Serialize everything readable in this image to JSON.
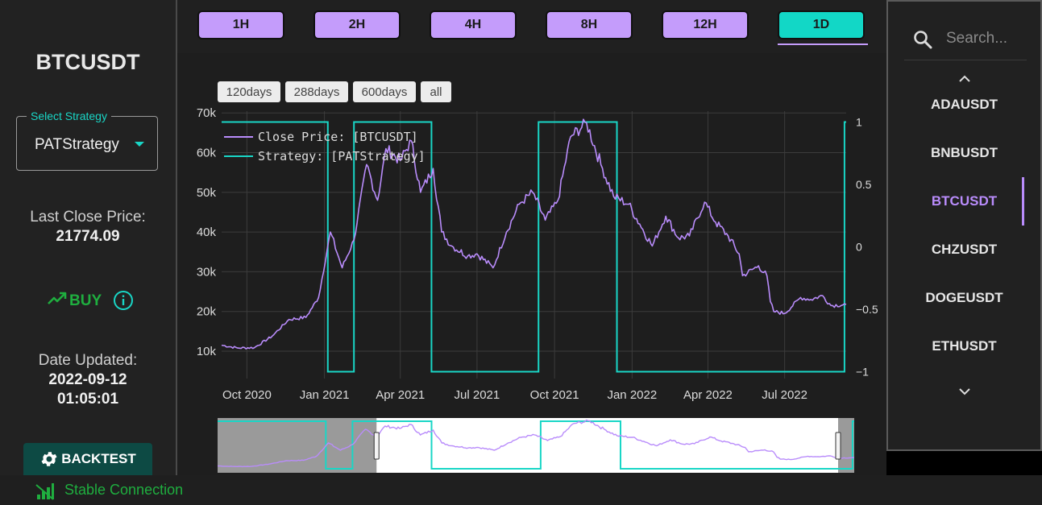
{
  "left": {
    "symbol": "BTCUSDT",
    "strategy_label": "Select Strategy",
    "strategy_value": "PATStrategy",
    "last_close_label": "Last Close Price:",
    "last_close_value": "21774.09",
    "signal": "BUY",
    "date_updated_label": "Date Updated:",
    "date_updated_date": "2022-09-12",
    "date_updated_time": "01:05:01",
    "backtest_label": "BACKTEST"
  },
  "status": {
    "connection": "Stable Connection"
  },
  "timeframes": [
    {
      "label": "1H",
      "active": false
    },
    {
      "label": "2H",
      "active": false
    },
    {
      "label": "4H",
      "active": false
    },
    {
      "label": "8H",
      "active": false
    },
    {
      "label": "12H",
      "active": false
    },
    {
      "label": "1D",
      "active": true
    }
  ],
  "range_buttons": [
    "120days",
    "288days",
    "600days",
    "all"
  ],
  "sidebar": {
    "search_placeholder": "Search...",
    "symbols": [
      {
        "label": "ADAUSDT",
        "active": false
      },
      {
        "label": "BNBUSDT",
        "active": false
      },
      {
        "label": "BTCUSDT",
        "active": true
      },
      {
        "label": "CHZUSDT",
        "active": false
      },
      {
        "label": "DOGEUSDT",
        "active": false
      },
      {
        "label": "ETHUSDT",
        "active": false
      }
    ]
  },
  "colors": {
    "price": "#b98cfb",
    "strategy": "#19d6c6",
    "buy": "#1fae3f"
  },
  "chart_data": {
    "type": "line",
    "x_ticks": [
      "Oct 2020",
      "Jan 2021",
      "Apr 2021",
      "Jul 2021",
      "Oct 2021",
      "Jan 2022",
      "Apr 2022",
      "Jul 2022"
    ],
    "y_ticks": [
      "10k",
      "20k",
      "30k",
      "40k",
      "50k",
      "60k",
      "70k"
    ],
    "y2_ticks": [
      "1",
      "0.5",
      "0",
      "−0.5",
      "−1"
    ],
    "ylim": [
      7000,
      70000
    ],
    "y2lim": [
      -1,
      1
    ],
    "grid": true,
    "legend_position": "top-left",
    "x_range": [
      "2020-09-01",
      "2022-09-12"
    ],
    "series": [
      {
        "name": "Close Price: [BTCUSDT]",
        "axis": "left",
        "x": [
          "2020-09-01",
          "2020-09-20",
          "2020-10-10",
          "2020-10-31",
          "2020-11-20",
          "2020-12-10",
          "2020-12-25",
          "2021-01-08",
          "2021-01-22",
          "2021-02-05",
          "2021-02-20",
          "2021-03-05",
          "2021-03-15",
          "2021-04-01",
          "2021-04-14",
          "2021-04-25",
          "2021-05-10",
          "2021-05-20",
          "2021-06-01",
          "2021-06-20",
          "2021-07-01",
          "2021-07-20",
          "2021-08-05",
          "2021-08-20",
          "2021-09-05",
          "2021-09-20",
          "2021-10-05",
          "2021-10-20",
          "2021-11-08",
          "2021-11-25",
          "2021-12-10",
          "2021-12-28",
          "2022-01-10",
          "2022-01-25",
          "2022-02-10",
          "2022-02-25",
          "2022-03-10",
          "2022-03-28",
          "2022-04-10",
          "2022-04-25",
          "2022-05-08",
          "2022-05-12",
          "2022-05-31",
          "2022-06-10",
          "2022-06-14",
          "2022-06-18",
          "2022-07-01",
          "2022-07-20",
          "2022-08-01",
          "2022-08-15",
          "2022-08-25",
          "2022-09-12"
        ],
        "values": [
          11500,
          10800,
          10900,
          13800,
          18000,
          18500,
          23500,
          40000,
          31000,
          38000,
          57000,
          48000,
          61000,
          58000,
          63000,
          50000,
          56000,
          40000,
          36500,
          34000,
          34500,
          31000,
          40000,
          47000,
          50000,
          43000,
          48000,
          64000,
          67500,
          57000,
          49000,
          47000,
          42000,
          36500,
          44000,
          38500,
          39000,
          47500,
          42500,
          39000,
          34500,
          29000,
          31500,
          29000,
          22500,
          20000,
          19500,
          23500,
          23000,
          24000,
          21500,
          21774.09
        ]
      },
      {
        "name": "Strategy: [PATStrategy]",
        "axis": "right",
        "x": [
          "2020-09-01",
          "2021-01-05",
          "2021-01-05",
          "2021-02-05",
          "2021-02-05",
          "2021-05-08",
          "2021-05-08",
          "2021-09-12",
          "2021-09-12",
          "2021-12-14",
          "2021-12-14",
          "2022-09-10",
          "2022-09-10",
          "2022-09-12"
        ],
        "values": [
          1,
          1,
          -1,
          -1,
          1,
          1,
          -1,
          -1,
          1,
          1,
          -1,
          -1,
          1,
          1
        ]
      }
    ],
    "navigator": {
      "selected_range": [
        "2021-03-05",
        "2022-09-12"
      ]
    }
  }
}
